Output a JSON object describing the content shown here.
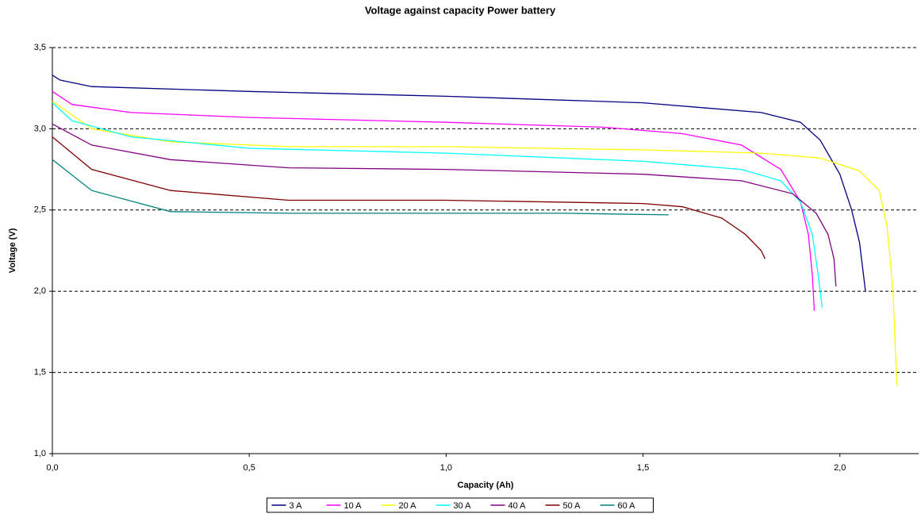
{
  "chart_data": {
    "type": "line",
    "title": "Voltage against capacity Power battery",
    "xlabel": "Capacity (Ah)",
    "ylabel": "Voltage (V)",
    "xlim": [
      0,
      2.2
    ],
    "ylim": [
      1.0,
      3.5
    ],
    "xticks": [
      {
        "value": 0,
        "label": "0,0"
      },
      {
        "value": 0.5,
        "label": "0,5"
      },
      {
        "value": 1.0,
        "label": "1,0"
      },
      {
        "value": 1.5,
        "label": "1,5"
      },
      {
        "value": 2.0,
        "label": "2,0"
      }
    ],
    "yticks": [
      {
        "value": 1.0,
        "label": "1,0"
      },
      {
        "value": 1.5,
        "label": "1,5"
      },
      {
        "value": 2.0,
        "label": "2,0"
      },
      {
        "value": 2.5,
        "label": "2,5"
      },
      {
        "value": 3.0,
        "label": "3,0"
      },
      {
        "value": 3.5,
        "label": "3,5"
      }
    ],
    "grid": true,
    "legend": "bottom",
    "series": [
      {
        "name": "3 A",
        "color": "#000080",
        "x": [
          0,
          0.02,
          0.1,
          0.5,
          1.0,
          1.5,
          1.8,
          1.9,
          1.95,
          2.0,
          2.03,
          2.05,
          2.06,
          2.065
        ],
        "values": [
          3.33,
          3.3,
          3.26,
          3.23,
          3.2,
          3.16,
          3.1,
          3.04,
          2.93,
          2.72,
          2.5,
          2.3,
          2.1,
          2.0
        ]
      },
      {
        "name": "10 A",
        "color": "#FF00FF",
        "x": [
          0,
          0.05,
          0.2,
          0.5,
          1.0,
          1.4,
          1.6,
          1.75,
          1.85,
          1.9,
          1.92,
          1.93,
          1.935
        ],
        "values": [
          3.23,
          3.15,
          3.1,
          3.07,
          3.04,
          3.01,
          2.97,
          2.9,
          2.75,
          2.55,
          2.35,
          2.1,
          1.88
        ]
      },
      {
        "name": "20 A",
        "color": "#FFFF00",
        "x": [
          0,
          0.1,
          0.3,
          0.6,
          1.0,
          1.5,
          1.8,
          1.95,
          2.05,
          2.1,
          2.12,
          2.135,
          2.14,
          2.145
        ],
        "values": [
          3.17,
          3.0,
          2.92,
          2.89,
          2.89,
          2.87,
          2.85,
          2.82,
          2.74,
          2.62,
          2.4,
          2.0,
          1.7,
          1.42
        ]
      },
      {
        "name": "30 A",
        "color": "#00FFFF",
        "x": [
          0,
          0.05,
          0.2,
          0.5,
          1.0,
          1.5,
          1.75,
          1.85,
          1.9,
          1.93,
          1.945,
          1.955
        ],
        "values": [
          3.16,
          3.05,
          2.95,
          2.88,
          2.85,
          2.8,
          2.75,
          2.68,
          2.55,
          2.35,
          2.1,
          1.9
        ]
      },
      {
        "name": "40 A",
        "color": "#800080",
        "x": [
          0,
          0.1,
          0.3,
          0.6,
          1.0,
          1.5,
          1.75,
          1.88,
          1.94,
          1.97,
          1.985,
          1.99
        ],
        "values": [
          3.03,
          2.9,
          2.81,
          2.76,
          2.75,
          2.72,
          2.68,
          2.6,
          2.48,
          2.35,
          2.2,
          2.03
        ]
      },
      {
        "name": "50 A",
        "color": "#800000",
        "x": [
          0,
          0.1,
          0.3,
          0.6,
          1.0,
          1.5,
          1.6,
          1.7,
          1.76,
          1.8,
          1.81
        ],
        "values": [
          2.95,
          2.75,
          2.62,
          2.56,
          2.56,
          2.54,
          2.52,
          2.45,
          2.35,
          2.25,
          2.2
        ]
      },
      {
        "name": "60 A",
        "color": "#008080",
        "x": [
          0,
          0.1,
          0.3,
          0.6,
          1.0,
          1.3,
          1.565
        ],
        "values": [
          2.81,
          2.62,
          2.49,
          2.48,
          2.48,
          2.48,
          2.47
        ]
      }
    ]
  }
}
